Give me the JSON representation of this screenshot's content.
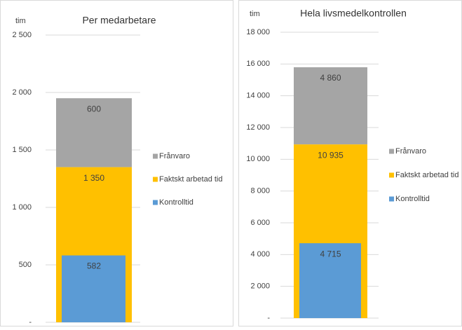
{
  "chart_data": [
    {
      "type": "bar",
      "title": "Per medarbetare",
      "y_label": "tim",
      "ylim": [
        0,
        2500
      ],
      "yticks": [
        {
          "value": 0,
          "label": "-"
        },
        500,
        {
          "value": 1000,
          "label": "1 000"
        },
        {
          "value": 1500,
          "label": "1 500"
        },
        {
          "value": 2000,
          "label": "2 000"
        },
        {
          "value": 2500,
          "label": "2 500"
        }
      ],
      "grid": true,
      "legend": "right",
      "series": [
        {
          "name": "Kontrolltid",
          "color": "#5b9bd5",
          "values": [
            582
          ]
        },
        {
          "name": "Faktskt arbetad tid",
          "color": "#ffc000",
          "values": [
            1350
          ],
          "value_labels": [
            "1 350"
          ]
        },
        {
          "name": "Frånvaro",
          "color": "#a5a5a5",
          "values": [
            600
          ],
          "stack": true
        }
      ]
    },
    {
      "type": "bar",
      "title": "Hela livsmedelkontrollen",
      "y_label": "tim",
      "ylim": [
        0,
        18000
      ],
      "yticks": [
        {
          "value": 0,
          "label": "-"
        },
        {
          "value": 2000,
          "label": "2 000"
        },
        {
          "value": 4000,
          "label": "4 000"
        },
        {
          "value": 6000,
          "label": "6 000"
        },
        {
          "value": 8000,
          "label": "8 000"
        },
        {
          "value": 10000,
          "label": "10 000"
        },
        {
          "value": 12000,
          "label": "12 000"
        },
        {
          "value": 14000,
          "label": "14 000"
        },
        {
          "value": 16000,
          "label": "16 000"
        },
        {
          "value": 18000,
          "label": "18 000"
        }
      ],
      "grid": true,
      "legend": "right",
      "series": [
        {
          "name": "Kontrolltid",
          "color": "#5b9bd5",
          "values": [
            4715
          ],
          "value_labels": [
            "4 715"
          ]
        },
        {
          "name": "Faktskt arbetad tid",
          "color": "#ffc000",
          "values": [
            10935
          ],
          "value_labels": [
            "10 935"
          ]
        },
        {
          "name": "Frånvaro",
          "color": "#a5a5a5",
          "values": [
            4860
          ],
          "value_labels": [
            "4 860"
          ],
          "stack": true
        }
      ]
    }
  ]
}
